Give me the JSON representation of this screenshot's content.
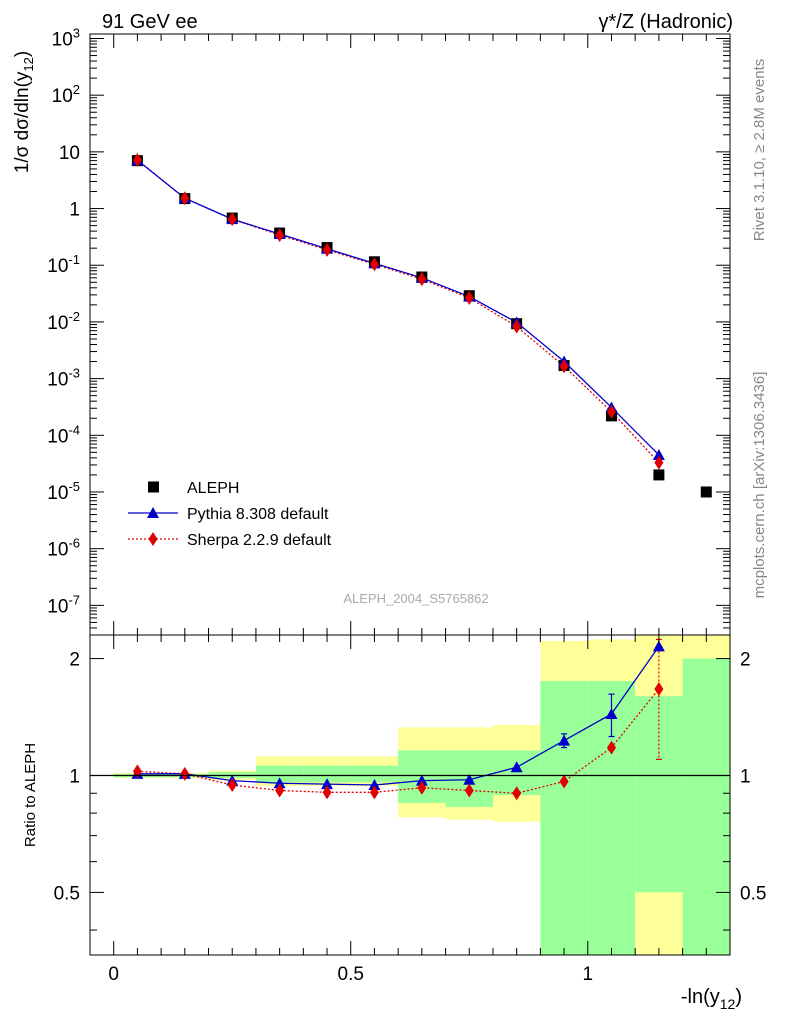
{
  "header": {
    "left_title": "91 GeV ee",
    "right_title": "γ*/Z (Hadronic)",
    "side_rivet": "Rivet 3.1.10, ≥ 2.8M events",
    "side_mcplots": "mcplots.cern.ch [arXiv:1306.3436]",
    "analysis_id": "ALEPH_2004_S5765862"
  },
  "chart_data": [
    {
      "type": "line",
      "panel": "main",
      "ylabel": "1/σ  dσ/dln(y_12)",
      "y_scale": "log",
      "ylim": [
        3e-08,
        1200
      ],
      "y_ticks": [
        "10^-7",
        "10^-6",
        "10^-5",
        "10^-4",
        "10^-3",
        "10^-2",
        "10^-1",
        "1",
        "10",
        "10^2",
        "10^3"
      ],
      "xlim": [
        -0.05,
        1.3
      ],
      "legend_position": "lower-left",
      "series": [
        {
          "name": "ALEPH",
          "marker": "square",
          "color": "#000000",
          "x": [
            0.05,
            0.15,
            0.25,
            0.35,
            0.45,
            0.55,
            0.65,
            0.75,
            0.85,
            0.95,
            1.05,
            1.15,
            1.25
          ],
          "y": [
            7.0,
            1.5,
            0.68,
            0.37,
            0.205,
            0.115,
            0.062,
            0.029,
            0.0093,
            0.0017,
            0.00022,
            2e-05,
            1e-05
          ]
        },
        {
          "name": "Pythia 8.308 default",
          "marker": "triangle",
          "line": "solid",
          "color": "#0000cc",
          "x": [
            0.05,
            0.15,
            0.25,
            0.35,
            0.45,
            0.55,
            0.65,
            0.75,
            0.85,
            0.95,
            1.05,
            1.15
          ],
          "y": [
            7.1,
            1.52,
            0.65,
            0.355,
            0.195,
            0.108,
            0.06,
            0.028,
            0.0098,
            0.002,
            0.00031,
            4.5e-05
          ]
        },
        {
          "name": "Sherpa 2.2.9 default",
          "marker": "diamond",
          "line": "dotted",
          "color": "#e00000",
          "x": [
            0.05,
            0.15,
            0.25,
            0.35,
            0.45,
            0.55,
            0.65,
            0.75,
            0.85,
            0.95,
            1.05,
            1.15
          ],
          "y": [
            7.2,
            1.52,
            0.65,
            0.34,
            0.187,
            0.104,
            0.057,
            0.0265,
            0.0083,
            0.00165,
            0.00026,
            3.3e-05
          ]
        }
      ]
    },
    {
      "type": "line",
      "panel": "ratio",
      "ylabel": "Ratio to ALEPH",
      "xlabel": "-ln(y_12)",
      "y_scale": "log",
      "ylim": [
        0.345,
        2.3
      ],
      "y_ticks": [
        0.5,
        1,
        2
      ],
      "xlim": [
        -0.05,
        1.3
      ],
      "x_ticks": [
        0,
        0.5,
        1
      ],
      "reference_line": 1,
      "uncertainty_bands": [
        {
          "x_lo": 0.0,
          "x_hi": 0.1,
          "stat_lo": 0.99,
          "stat_hi": 1.01,
          "total_lo": 0.985,
          "total_hi": 1.015
        },
        {
          "x_lo": 0.1,
          "x_hi": 0.2,
          "stat_lo": 0.99,
          "stat_hi": 1.01,
          "total_lo": 0.985,
          "total_hi": 1.015
        },
        {
          "x_lo": 0.2,
          "x_hi": 0.3,
          "stat_lo": 0.985,
          "stat_hi": 1.02,
          "total_lo": 0.975,
          "total_hi": 1.03
        },
        {
          "x_lo": 0.3,
          "x_hi": 0.4,
          "stat_lo": 0.96,
          "stat_hi": 1.06,
          "total_lo": 0.94,
          "total_hi": 1.12
        },
        {
          "x_lo": 0.4,
          "x_hi": 0.5,
          "stat_lo": 0.96,
          "stat_hi": 1.06,
          "total_lo": 0.94,
          "total_hi": 1.12
        },
        {
          "x_lo": 0.5,
          "x_hi": 0.6,
          "stat_lo": 0.96,
          "stat_hi": 1.06,
          "total_lo": 0.94,
          "total_hi": 1.12
        },
        {
          "x_lo": 0.6,
          "x_hi": 0.7,
          "stat_lo": 0.85,
          "stat_hi": 1.16,
          "total_lo": 0.78,
          "total_hi": 1.33
        },
        {
          "x_lo": 0.7,
          "x_hi": 0.8,
          "stat_lo": 0.83,
          "stat_hi": 1.16,
          "total_lo": 0.77,
          "total_hi": 1.33
        },
        {
          "x_lo": 0.8,
          "x_hi": 0.9,
          "stat_lo": 0.89,
          "stat_hi": 1.16,
          "total_lo": 0.76,
          "total_hi": 1.35
        },
        {
          "x_lo": 0.9,
          "x_hi": 1.0,
          "stat_lo": 0.345,
          "stat_hi": 1.75,
          "total_lo": 0.345,
          "total_hi": 2.22
        },
        {
          "x_lo": 1.0,
          "x_hi": 1.1,
          "stat_lo": 0.345,
          "stat_hi": 1.75,
          "total_lo": 0.345,
          "total_hi": 2.24
        },
        {
          "x_lo": 1.1,
          "x_hi": 1.2,
          "stat_lo": 0.5,
          "stat_hi": 1.6,
          "total_lo": 0.345,
          "total_hi": 2.3,
          "hole_lo": 0.345,
          "hole_hi": 0.5
        },
        {
          "x_lo": 1.2,
          "x_hi": 1.3,
          "stat_lo": 0.345,
          "stat_hi": 2.0,
          "total_lo": 0.345,
          "total_hi": 2.3
        }
      ],
      "series": [
        {
          "name": "Pythia 8.308 default",
          "marker": "triangle",
          "line": "solid",
          "color": "#0000cc",
          "x": [
            0.05,
            0.15,
            0.25,
            0.35,
            0.45,
            0.55,
            0.65,
            0.75,
            0.85,
            0.95,
            1.05,
            1.15
          ],
          "y": [
            1.01,
            1.01,
            0.97,
            0.955,
            0.95,
            0.945,
            0.97,
            0.975,
            1.05,
            1.23,
            1.44,
            2.15
          ],
          "err": [
            0,
            0,
            0,
            0,
            0,
            0,
            0,
            0,
            0,
            0.05,
            0.18,
            0
          ]
        },
        {
          "name": "Sherpa 2.2.9 default",
          "marker": "diamond",
          "line": "dotted",
          "color": "#e00000",
          "x": [
            0.05,
            0.15,
            0.25,
            0.35,
            0.45,
            0.55,
            0.65,
            0.75,
            0.85,
            0.95,
            1.05,
            1.15
          ],
          "y": [
            1.025,
            1.01,
            0.945,
            0.915,
            0.905,
            0.905,
            0.93,
            0.915,
            0.9,
            0.965,
            1.18,
            1.67
          ],
          "err": [
            0,
            0,
            0,
            0,
            0,
            0,
            0,
            0,
            0,
            0,
            0,
            0.57
          ]
        }
      ]
    }
  ]
}
